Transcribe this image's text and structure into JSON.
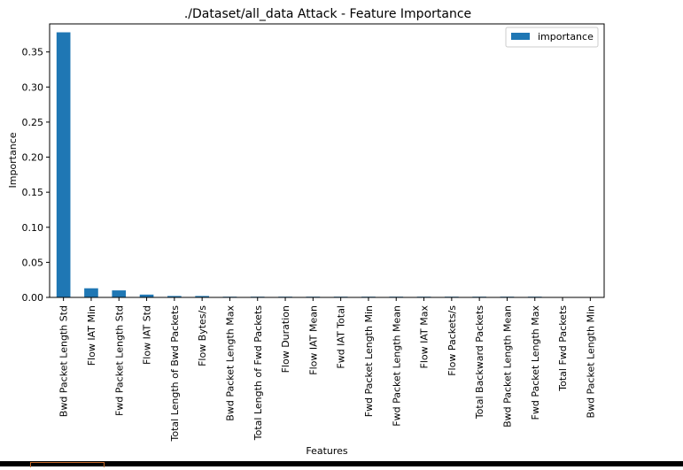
{
  "chart_data": {
    "type": "bar",
    "title": "./Dataset/all_data Attack - Feature Importance",
    "xlabel": "Features",
    "ylabel": "Importance",
    "categories": [
      "Bwd Packet Length Std",
      "Flow IAT Min",
      "Fwd Packet Length Std",
      "Flow IAT Std",
      "Total Length of Bwd Packets",
      "Flow Bytes/s",
      "Bwd Packet Length Max",
      "Total Length of Fwd Packets",
      "Flow Duration",
      "Flow IAT Mean",
      "Fwd IAT Total",
      "Fwd Packet Length Min",
      "Fwd Packet Length Mean",
      "Flow IAT Max",
      "Flow Packets/s",
      "Total Backward Packets",
      "Bwd Packet Length Mean",
      "Fwd Packet Length Max",
      "Total Fwd Packets",
      "Bwd Packet Length Min"
    ],
    "series": [
      {
        "name": "importance",
        "color": "#1f77b4",
        "values": [
          0.378,
          0.013,
          0.01,
          0.004,
          0.002,
          0.002,
          0.001,
          0.001,
          0.001,
          0.001,
          0.001,
          0.001,
          0.001,
          0.001,
          0.001,
          0.001,
          0.001,
          0.001,
          0.0,
          0.0
        ]
      }
    ],
    "ylim": [
      0,
      0.39
    ],
    "yticks": [
      0.0,
      0.05,
      0.1,
      0.15,
      0.2,
      0.25,
      0.3,
      0.35
    ],
    "ytick_labels": [
      "0.00",
      "0.05",
      "0.10",
      "0.15",
      "0.20",
      "0.25",
      "0.30",
      "0.35"
    ],
    "grid": false,
    "legend_position": "top-right"
  }
}
